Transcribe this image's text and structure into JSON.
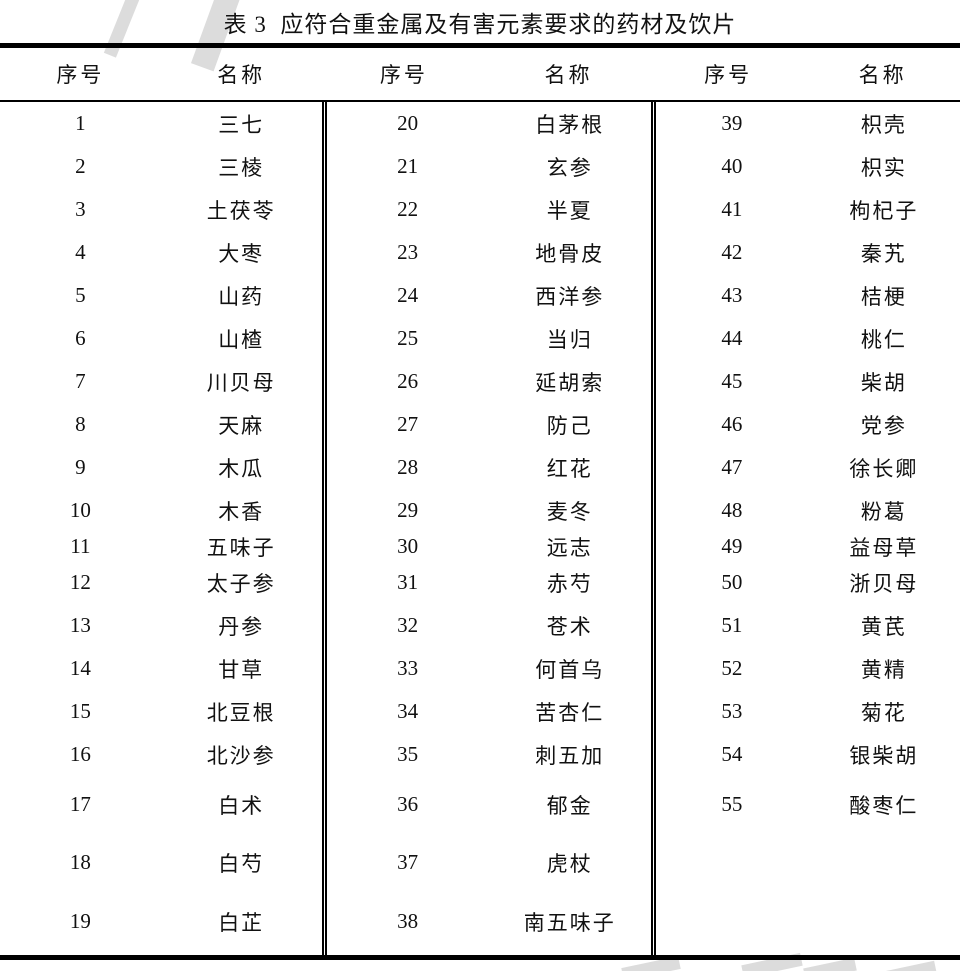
{
  "title": "表 3  应符合重金属及有害元素要求的药材及饮片",
  "table": {
    "header": [
      "序号",
      "名称",
      "序号",
      "名称",
      "序号",
      "名称"
    ],
    "rows": [
      [
        "1",
        "三七",
        "20",
        "白茅根",
        "39",
        "枳壳"
      ],
      [
        "2",
        "三棱",
        "21",
        "玄参",
        "40",
        "枳实"
      ],
      [
        "3",
        "土茯苓",
        "22",
        "半夏",
        "41",
        "枸杞子"
      ],
      [
        "4",
        "大枣",
        "23",
        "地骨皮",
        "42",
        "秦艽"
      ],
      [
        "5",
        "山药",
        "24",
        "西洋参",
        "43",
        "桔梗"
      ],
      [
        "6",
        "山楂",
        "25",
        "当归",
        "44",
        "桃仁"
      ],
      [
        "7",
        "川贝母",
        "26",
        "延胡索",
        "45",
        "柴胡"
      ],
      [
        "8",
        "天麻",
        "27",
        "防己",
        "46",
        "党参"
      ],
      [
        "9",
        "木瓜",
        "28",
        "红花",
        "47",
        "徐长卿"
      ],
      [
        "10",
        "木香",
        "29",
        "麦冬",
        "48",
        "粉葛"
      ],
      [
        "11",
        "五味子",
        "30",
        "远志",
        "49",
        "益母草"
      ],
      [
        "12",
        "太子参",
        "31",
        "赤芍",
        "50",
        "浙贝母"
      ],
      [
        "13",
        "丹参",
        "32",
        "苍术",
        "51",
        "黄芪"
      ],
      [
        "14",
        "甘草",
        "33",
        "何首乌",
        "52",
        "黄精"
      ],
      [
        "15",
        "北豆根",
        "34",
        "苦杏仁",
        "53",
        "菊花"
      ],
      [
        "16",
        "北沙参",
        "35",
        "刺五加",
        "54",
        "银柴胡"
      ],
      [
        "17",
        "白术",
        "36",
        "郁金",
        "55",
        "酸枣仁"
      ],
      [
        "18",
        "白芍",
        "37",
        "虎杖",
        "",
        ""
      ],
      [
        "19",
        "白芷",
        "38",
        "南五味子",
        "",
        ""
      ]
    ]
  },
  "colors": {
    "background": "#ffffff",
    "text": "#111111",
    "border": "#000000",
    "watermark": "#dcdcdc"
  }
}
